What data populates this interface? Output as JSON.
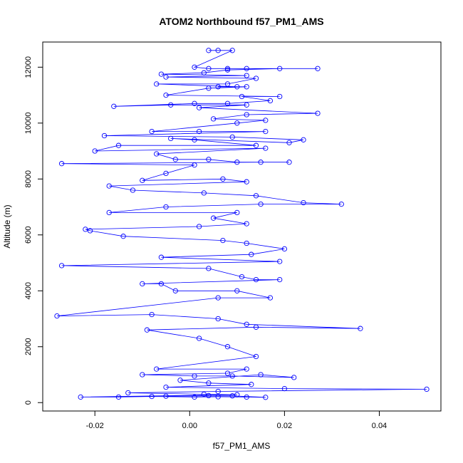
{
  "chart_data": {
    "type": "line",
    "title": "ATOM2 Northbound f57_PM1_AMS",
    "xlabel": "f57_PM1_AMS",
    "ylabel": "Altitude (m)",
    "xlim": [
      -0.031,
      0.053
    ],
    "ylim": [
      -300,
      12900
    ],
    "x_ticks": [
      -0.02,
      0.0,
      0.02,
      0.04
    ],
    "x_tick_labels": [
      "-0.02",
      "0.00",
      "0.02",
      "0.04"
    ],
    "y_ticks": [
      0,
      2000,
      4000,
      6000,
      8000,
      10000,
      12000
    ],
    "y_tick_labels": [
      "0",
      "2000",
      "4000",
      "6000",
      "8000",
      "10000",
      "12000"
    ],
    "series": [
      {
        "color": "#0000ff",
        "marker": "open-circle",
        "points": [
          [
            0.004,
            12600
          ],
          [
            0.006,
            12600
          ],
          [
            0.009,
            12600
          ],
          [
            0.001,
            12000
          ],
          [
            0.004,
            11950
          ],
          [
            0.008,
            11950
          ],
          [
            0.012,
            11950
          ],
          [
            0.027,
            11950
          ],
          [
            0.019,
            11950
          ],
          [
            0.008,
            11900
          ],
          [
            0.003,
            11800
          ],
          [
            -0.006,
            11750
          ],
          [
            0.012,
            11700
          ],
          [
            -0.005,
            11650
          ],
          [
            0.014,
            11600
          ],
          [
            0.008,
            11400
          ],
          [
            -0.007,
            11400
          ],
          [
            0.01,
            11300
          ],
          [
            0.006,
            11300
          ],
          [
            0.012,
            11300
          ],
          [
            0.004,
            11250
          ],
          [
            -0.005,
            11000
          ],
          [
            0.019,
            10950
          ],
          [
            0.011,
            10950
          ],
          [
            0.017,
            10800
          ],
          [
            0.008,
            10700
          ],
          [
            0.001,
            10700
          ],
          [
            -0.016,
            10600
          ],
          [
            -0.004,
            10650
          ],
          [
            0.012,
            10650
          ],
          [
            0.002,
            10550
          ],
          [
            0.027,
            10350
          ],
          [
            0.012,
            10300
          ],
          [
            0.005,
            10150
          ],
          [
            0.016,
            10100
          ],
          [
            0.01,
            10000
          ],
          [
            -0.008,
            9700
          ],
          [
            0.002,
            9700
          ],
          [
            0.016,
            9700
          ],
          [
            -0.018,
            9550
          ],
          [
            0.009,
            9500
          ],
          [
            0.024,
            9400
          ],
          [
            0.021,
            9300
          ],
          [
            -0.004,
            9450
          ],
          [
            0.001,
            9400
          ],
          [
            0.014,
            9200
          ],
          [
            -0.015,
            9200
          ],
          [
            -0.02,
            9000
          ],
          [
            0.016,
            9100
          ],
          [
            -0.007,
            8900
          ],
          [
            -0.003,
            8700
          ],
          [
            0.004,
            8700
          ],
          [
            0.01,
            8600
          ],
          [
            0.021,
            8600
          ],
          [
            0.015,
            8600
          ],
          [
            -0.027,
            8550
          ],
          [
            0.001,
            8500
          ],
          [
            -0.005,
            8200
          ],
          [
            -0.01,
            7950
          ],
          [
            0.007,
            8000
          ],
          [
            0.012,
            7900
          ],
          [
            -0.017,
            7750
          ],
          [
            -0.012,
            7600
          ],
          [
            0.003,
            7500
          ],
          [
            0.014,
            7400
          ],
          [
            0.024,
            7150
          ],
          [
            0.032,
            7100
          ],
          [
            0.015,
            7100
          ],
          [
            -0.005,
            7000
          ],
          [
            -0.017,
            6800
          ],
          [
            0.01,
            6800
          ],
          [
            0.005,
            6600
          ],
          [
            0.012,
            6400
          ],
          [
            0.002,
            6300
          ],
          [
            -0.022,
            6200
          ],
          [
            -0.021,
            6150
          ],
          [
            -0.014,
            5950
          ],
          [
            0.007,
            5800
          ],
          [
            0.012,
            5700
          ],
          [
            0.02,
            5500
          ],
          [
            0.013,
            5300
          ],
          [
            -0.006,
            5200
          ],
          [
            0.019,
            5050
          ],
          [
            -0.027,
            4900
          ],
          [
            0.004,
            4800
          ],
          [
            0.011,
            4500
          ],
          [
            0.014,
            4400
          ],
          [
            0.019,
            4400
          ],
          [
            -0.01,
            4250
          ],
          [
            -0.006,
            4250
          ],
          [
            -0.003,
            4000
          ],
          [
            0.01,
            4000
          ],
          [
            0.017,
            3750
          ],
          [
            0.006,
            3750
          ],
          [
            -0.028,
            3100
          ],
          [
            -0.008,
            3150
          ],
          [
            0.006,
            3000
          ],
          [
            0.012,
            2800
          ],
          [
            0.036,
            2650
          ],
          [
            0.014,
            2700
          ],
          [
            -0.009,
            2600
          ],
          [
            0.002,
            2300
          ],
          [
            0.008,
            2000
          ],
          [
            0.014,
            1650
          ],
          [
            -0.007,
            1200
          ],
          [
            0.012,
            1200
          ],
          [
            0.008,
            1050
          ],
          [
            -0.01,
            1000
          ],
          [
            0.001,
            950
          ],
          [
            0.009,
            950
          ],
          [
            0.022,
            900
          ],
          [
            0.015,
            1000
          ],
          [
            -0.002,
            800
          ],
          [
            0.004,
            700
          ],
          [
            0.013,
            650
          ],
          [
            -0.005,
            550
          ],
          [
            0.02,
            500
          ],
          [
            0.05,
            480
          ],
          [
            0.006,
            400
          ],
          [
            -0.013,
            350
          ],
          [
            0.003,
            300
          ],
          [
            0.01,
            280
          ],
          [
            -0.023,
            200
          ],
          [
            -0.015,
            200
          ],
          [
            -0.008,
            220
          ],
          [
            0.001,
            200
          ],
          [
            0.006,
            210
          ],
          [
            0.012,
            200
          ],
          [
            0.016,
            190
          ],
          [
            0.009,
            240
          ],
          [
            -0.005,
            230
          ],
          [
            0.004,
            250
          ]
        ]
      }
    ]
  }
}
